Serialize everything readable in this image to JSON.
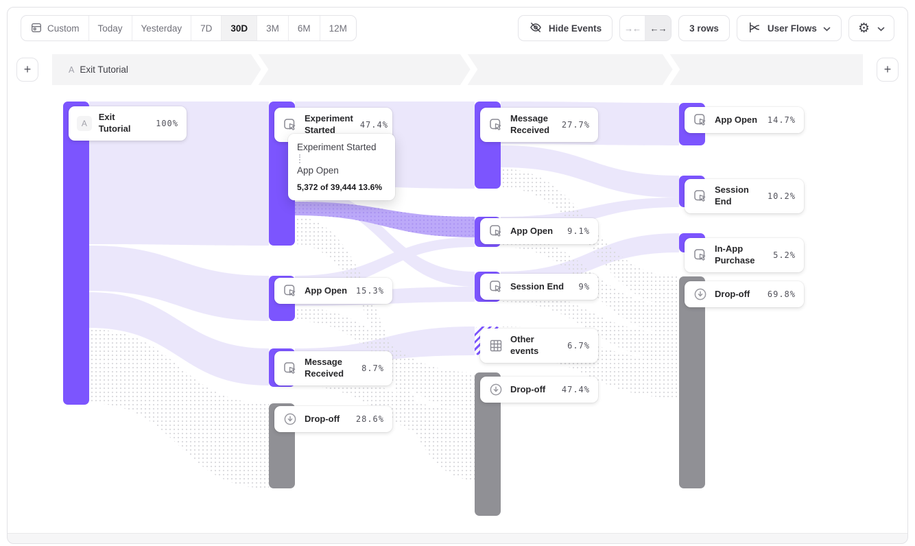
{
  "toolbar": {
    "date_ranges": [
      "Custom",
      "Today",
      "Yesterday",
      "7D",
      "30D",
      "3M",
      "6M",
      "12M"
    ],
    "active_range": "30D",
    "hide_events_label": "Hide Events",
    "rows_label": "3 rows",
    "view_label": "User Flows"
  },
  "steps_header": {
    "letter": "A",
    "label": "Exit Tutorial"
  },
  "tooltip": {
    "from": "Experiment Started",
    "to": "App Open",
    "detail": "5,372 of 39,444 13.6%"
  },
  "sankey": {
    "nodes": [
      {
        "col": 1,
        "label": "Exit Tutorial",
        "pct": "100%",
        "kind": "start",
        "letter": "A"
      },
      {
        "col": 2,
        "label": "Experiment Started",
        "pct": "47.4%",
        "kind": "event"
      },
      {
        "col": 2,
        "label": "App Open",
        "pct": "15.3%",
        "kind": "event"
      },
      {
        "col": 2,
        "label": "Message Received",
        "pct": "8.7%",
        "kind": "event"
      },
      {
        "col": 2,
        "label": "Drop-off",
        "pct": "28.6%",
        "kind": "dropoff"
      },
      {
        "col": 3,
        "label": "Message Received",
        "pct": "27.7%",
        "kind": "event"
      },
      {
        "col": 3,
        "label": "App Open",
        "pct": "9.1%",
        "kind": "event"
      },
      {
        "col": 3,
        "label": "Session End",
        "pct": "9%",
        "kind": "event"
      },
      {
        "col": 3,
        "label": "Other events",
        "pct": "6.7%",
        "kind": "other"
      },
      {
        "col": 3,
        "label": "Drop-off",
        "pct": "47.4%",
        "kind": "dropoff"
      },
      {
        "col": 4,
        "label": "App Open",
        "pct": "14.7%",
        "kind": "event"
      },
      {
        "col": 4,
        "label": "Session End",
        "pct": "10.2%",
        "kind": "event"
      },
      {
        "col": 4,
        "label": "In-App Purchase",
        "pct": "5.2%",
        "kind": "event"
      },
      {
        "col": 4,
        "label": "Drop-off",
        "pct": "69.8%",
        "kind": "dropoff"
      }
    ]
  },
  "colors": {
    "node_purple": "#7c55fe",
    "node_gray": "#909095",
    "ribbon_light": "#ebe7fb",
    "ribbon_highlight": "#bca9f9",
    "dot_gray": "#dadade",
    "dot_purple": "#a78ff2"
  }
}
